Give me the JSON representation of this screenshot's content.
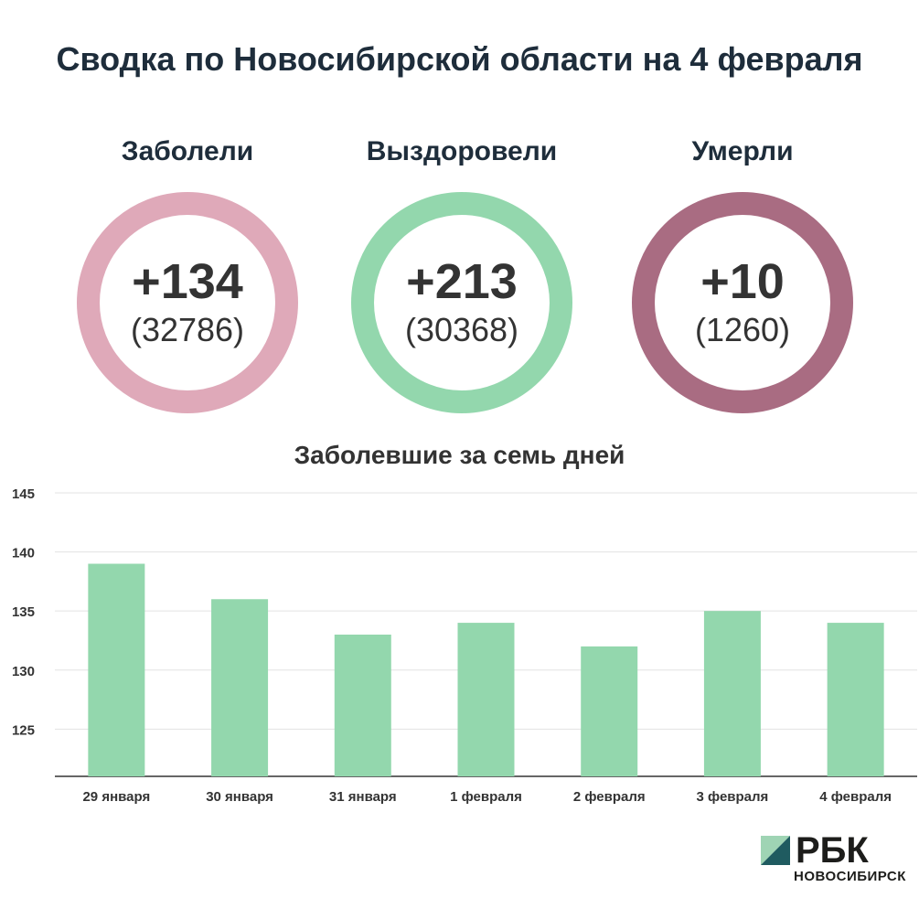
{
  "title": "Сводка по Новосибирской области на 4 февраля",
  "stats": [
    {
      "label": "Заболели",
      "delta": "+134",
      "total": "(32786)",
      "color": "#dfa9b9"
    },
    {
      "label": "Выздоровели",
      "delta": "+213",
      "total": "(30368)",
      "color": "#93d7ad"
    },
    {
      "label": "Умерли",
      "delta": "+10",
      "total": "(1260)",
      "color": "#a96c82"
    }
  ],
  "chart_data": {
    "type": "bar",
    "title": "Заболевшие за семь дней",
    "categories": [
      "29 января",
      "30 января",
      "31 января",
      "1 февраля",
      "2 февраля",
      "3 февраля",
      "4 февраля"
    ],
    "values": [
      139,
      136,
      133,
      134,
      132,
      135,
      134
    ],
    "ylim": [
      121,
      145
    ],
    "yticks": [
      125,
      130,
      135,
      140,
      145
    ],
    "grid": true,
    "bar_color": "#93d7ad",
    "xlabel": "",
    "ylabel": ""
  },
  "brand": {
    "name": "РБК",
    "sub": "НОВОСИБИРСК"
  }
}
